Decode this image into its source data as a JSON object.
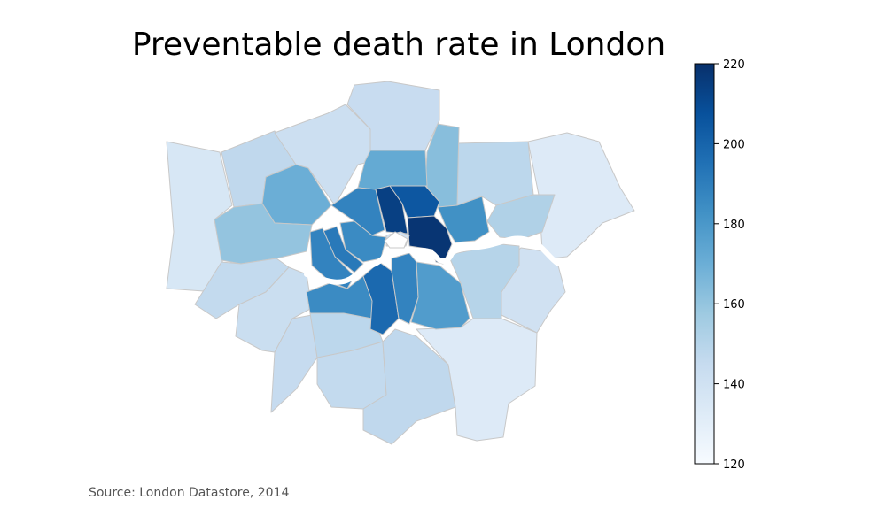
{
  "title": "Preventable death rate in London",
  "source": "Source: London Datastore, 2014",
  "colorbar": {
    "min": 120,
    "max": 220,
    "ticks": [
      "120",
      "140",
      "160",
      "180",
      "200",
      "220"
    ],
    "colormap": "Blues",
    "stops": [
      "#f7fbff",
      "#deebf7",
      "#c6dbef",
      "#9ecae1",
      "#6baed6",
      "#4292c6",
      "#2171b5",
      "#08519c",
      "#08306b"
    ]
  },
  "colors": {
    "border": "#c8c8c8",
    "river": "#ffffff"
  },
  "chart_data": {
    "type": "choropleth",
    "title": "Preventable death rate in London",
    "value_range": [
      120,
      220
    ],
    "regions": [
      {
        "value": 133
      },
      {
        "value": 136
      },
      {
        "value": 138
      },
      {
        "value": 140
      },
      {
        "value": 142
      },
      {
        "value": 143
      },
      {
        "value": 144
      },
      {
        "value": 145
      },
      {
        "value": 146
      },
      {
        "value": 147
      },
      {
        "value": 148
      },
      {
        "value": 150
      },
      {
        "value": 152
      },
      {
        "value": 154
      },
      {
        "value": 160
      },
      {
        "value": 163
      },
      {
        "value": 165
      },
      {
        "value": 170
      },
      {
        "value": 172
      },
      {
        "value": 178
      },
      {
        "value": 183
      },
      {
        "value": 185
      },
      {
        "value": 188
      },
      {
        "value": 192
      },
      {
        "value": 198
      },
      {
        "value": 205
      },
      {
        "value": 212
      },
      {
        "value": 214
      },
      {
        "value": 218
      }
    ]
  }
}
